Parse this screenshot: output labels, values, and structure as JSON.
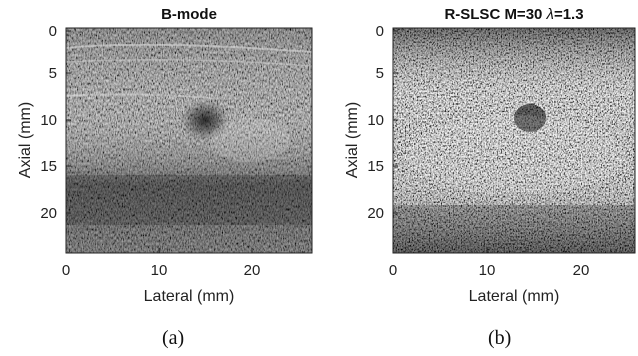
{
  "panels": [
    {
      "id": "a",
      "title": "B-mode",
      "title_symbol": "",
      "title_suffix": "",
      "xlabel": "Lateral (mm)",
      "ylabel": "Axial (mm)",
      "xticks": [
        "0",
        "10",
        "20"
      ],
      "yticks": [
        "0",
        "5",
        "10",
        "15",
        "20"
      ],
      "caption": "(a)",
      "image_type": "ultrasound-b-mode-speckle"
    },
    {
      "id": "b",
      "title": "R-SLSC M=30 ",
      "title_symbol": "λ",
      "title_suffix": "=1.3",
      "xlabel": "Lateral (mm)",
      "ylabel": "Axial (mm)",
      "xticks": [
        "0",
        "10",
        "20"
      ],
      "yticks": [
        "0",
        "5",
        "10",
        "15",
        "20"
      ],
      "caption": "(b)",
      "image_type": "ultrasound-slsc-speckle"
    }
  ],
  "colors": {
    "background": "#ffffff",
    "image_dark": "#151515",
    "image_light": "#e8e8e8"
  }
}
